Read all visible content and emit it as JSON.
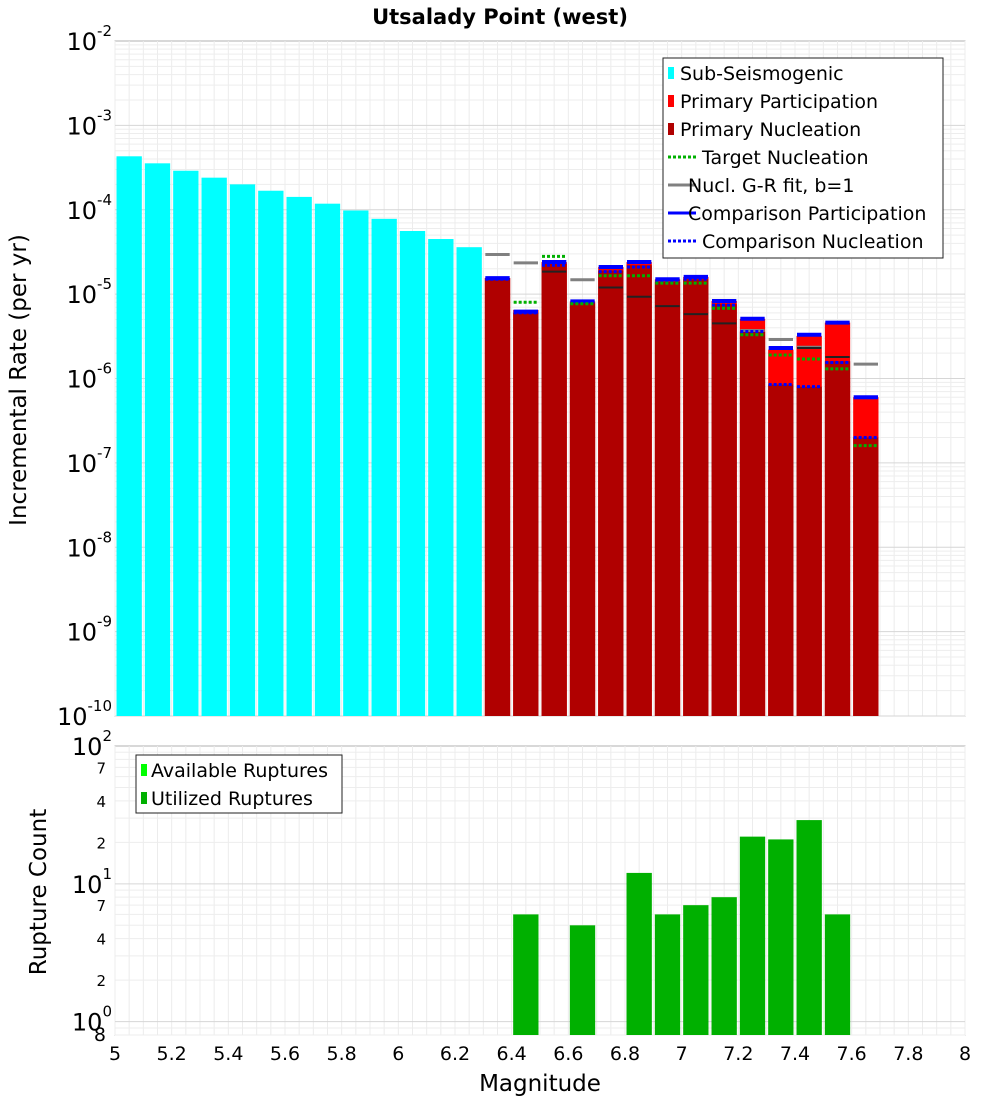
{
  "chart_data": [
    {
      "type": "bar",
      "title": "Utsalady Point (west)",
      "xlabel": "Magnitude",
      "ylabel": "Incremental Rate (per yr)",
      "yscale": "log",
      "xlim": [
        5,
        8
      ],
      "ylim": [
        1e-10,
        0.01
      ],
      "ytick_labels": [
        {
          "base": "10",
          "exp": "-10"
        },
        {
          "base": "10",
          "exp": "-9"
        },
        {
          "base": "10",
          "exp": "-8"
        },
        {
          "base": "10",
          "exp": "-7"
        },
        {
          "base": "10",
          "exp": "-6"
        },
        {
          "base": "10",
          "exp": "-5"
        },
        {
          "base": "10",
          "exp": "-4"
        },
        {
          "base": "10",
          "exp": "-3"
        },
        {
          "base": "10",
          "exp": "-2"
        }
      ],
      "legend": [
        {
          "label": "Sub-Seismogenic",
          "color": "#00ffff",
          "style": "bar"
        },
        {
          "label": "Primary Participation",
          "color": "#ff0000",
          "style": "bar"
        },
        {
          "label": "Primary Nucleation",
          "color": "#b00000",
          "style": "bar"
        },
        {
          "label": "Target Nucleation",
          "color": "#00b000",
          "style": "dotted"
        },
        {
          "label": "Nucl. G-R fit, b=1",
          "color": "#808080",
          "style": "solid"
        },
        {
          "label": "Comparison Participation",
          "color": "#0000ff",
          "style": "solid"
        },
        {
          "label": "Comparison Nucleation",
          "color": "#0000ff",
          "style": "dotted"
        }
      ],
      "sub_seismogenic": {
        "x": [
          5.05,
          5.15,
          5.25,
          5.35,
          5.45,
          5.55,
          5.65,
          5.75,
          5.85,
          5.95,
          6.05,
          6.15,
          6.25
        ],
        "values": [
          0.00043,
          0.000355,
          0.00029,
          0.00024,
          0.0002,
          0.000168,
          0.000142,
          0.000118,
          9.8e-05,
          7.8e-05,
          5.6e-05,
          4.5e-05,
          3.6e-05
        ]
      },
      "supra": {
        "x": [
          6.35,
          6.45,
          6.55,
          6.65,
          6.75,
          6.85,
          6.95,
          7.05,
          7.15,
          7.25,
          7.35,
          7.45,
          7.55,
          7.65
        ],
        "participation": [
          1.55e-05,
          6.5e-06,
          2.4e-05,
          8.2e-06,
          2.1e-05,
          2.4e-05,
          1.5e-05,
          1.6e-05,
          8.3e-06,
          5.1e-06,
          2.2e-06,
          3.2e-06,
          4.6e-06,
          6e-07
        ],
        "nucleation": [
          1.55e-05,
          6e-06,
          2.3e-05,
          7.8e-06,
          1.9e-05,
          2.2e-05,
          1.4e-05,
          1.5e-05,
          7.6e-06,
          3.6e-06,
          8.5e-07,
          8e-07,
          1.6e-06,
          2e-07
        ],
        "target_nucleation": [
          null,
          8e-06,
          2.8e-05,
          7.7e-06,
          1.65e-05,
          1.65e-05,
          1.35e-05,
          1.35e-05,
          6.8e-06,
          3.3e-06,
          1.9e-06,
          1.7e-06,
          1.3e-06,
          1.6e-07
        ],
        "comparison_participation": [
          1.55e-05,
          6.2e-06,
          2.4e-05,
          8.2e-06,
          2.1e-05,
          2.4e-05,
          1.5e-05,
          1.6e-05,
          8.3e-06,
          5.1e-06,
          2.3e-06,
          3.3e-06,
          4.6e-06,
          6e-07
        ],
        "comparison_nucleation": [
          1.5e-05,
          6e-06,
          2.2e-05,
          7.8e-06,
          1.85e-05,
          2.1e-05,
          1.4e-05,
          1.5e-05,
          7.4e-06,
          3.6e-06,
          8.5e-07,
          8e-07,
          1.55e-06,
          2e-07
        ],
        "nucleation_marks": [
          null,
          null,
          1.85e-05,
          null,
          1.2e-05,
          9.3e-06,
          7.2e-06,
          5.8e-06,
          4.5e-06,
          null,
          null,
          2.3e-06,
          1.8e-06,
          null
        ]
      },
      "gr_fit": {
        "x": [
          6.35,
          6.45,
          6.65,
          7.25,
          7.35,
          7.45,
          7.65
        ],
        "values": [
          2.95e-05,
          2.35e-05,
          1.48e-05,
          3.7e-06,
          2.9e-06,
          2.35e-06,
          1.48e-06
        ]
      }
    },
    {
      "type": "bar",
      "xlabel": "Magnitude",
      "ylabel": "Rupture Count",
      "yscale": "log",
      "xlim": [
        5,
        8
      ],
      "ylim": [
        0.8,
        100
      ],
      "x_tick_labels": [
        "5",
        "5.2",
        "5.4",
        "5.6",
        "5.8",
        "6",
        "6.2",
        "6.4",
        "6.6",
        "6.8",
        "7",
        "7.2",
        "7.4",
        "7.6",
        "7.8",
        "8"
      ],
      "ytick_labels": [
        {
          "base": "10",
          "exp": "0"
        },
        {
          "base": "10",
          "exp": "1"
        },
        {
          "base": "10",
          "exp": "2"
        }
      ],
      "minor_tick_labels": [
        "8",
        "2",
        "4",
        "7",
        "2",
        "4",
        "7"
      ],
      "legend": [
        {
          "label": "Available Ruptures",
          "color": "#00ff00",
          "style": "bar"
        },
        {
          "label": "Utilized Ruptures",
          "color": "#00b000",
          "style": "bar"
        }
      ],
      "utilized": {
        "x": [
          6.45,
          6.65,
          6.85,
          6.95,
          7.05,
          7.15,
          7.25,
          7.35,
          7.45,
          7.55
        ],
        "values": [
          6,
          5,
          12,
          6,
          7,
          8,
          22,
          21,
          29,
          6
        ]
      }
    }
  ]
}
